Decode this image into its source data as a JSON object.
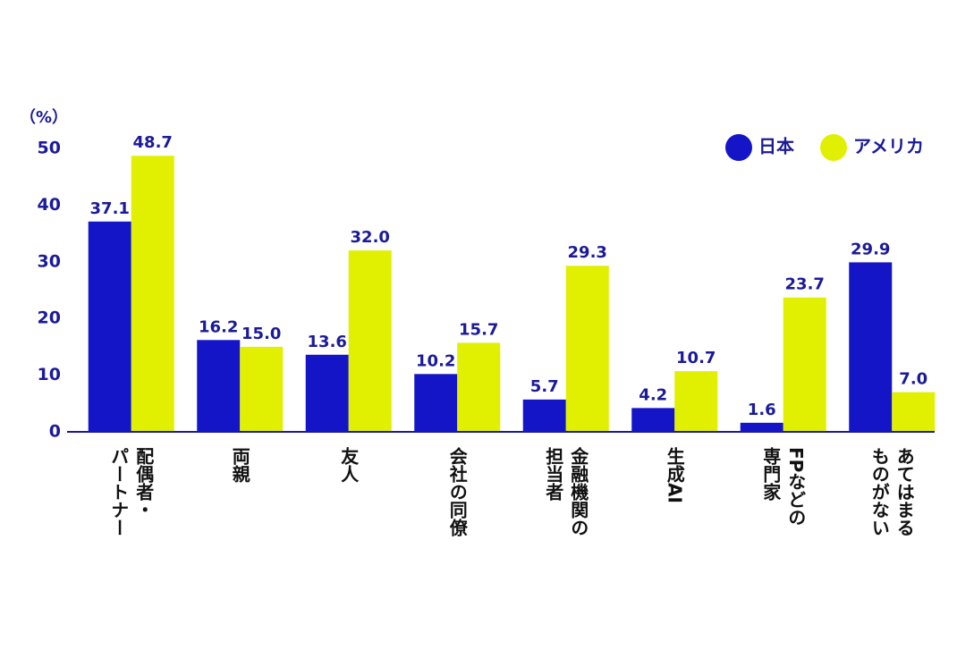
{
  "chart_data": {
    "type": "bar",
    "unit_label": "（%）",
    "categories": [
      [
        "配偶者・",
        "パートナー"
      ],
      [
        "両親"
      ],
      [
        "友人"
      ],
      [
        "会社の同僚"
      ],
      [
        "金融機関の",
        "担当者"
      ],
      [
        "生成AI"
      ],
      [
        "FPなどの",
        "専門家"
      ],
      [
        "あてはまる",
        "ものがない"
      ]
    ],
    "series": [
      {
        "name": "日本",
        "color": "#1515c8",
        "values": [
          37.1,
          16.2,
          13.6,
          10.2,
          5.7,
          4.2,
          1.6,
          29.9
        ],
        "value_labels": [
          "37.1",
          "16.2",
          "13.6",
          "10.2",
          "5.7",
          "4.2",
          "1.6",
          "29.9"
        ]
      },
      {
        "name": "アメリカ",
        "color": "#e1f000",
        "values": [
          48.7,
          15.0,
          32.0,
          15.7,
          29.3,
          10.7,
          23.7,
          7.0
        ],
        "value_labels": [
          "48.7",
          "15.0",
          "32.0",
          "15.7",
          "29.3",
          "10.7",
          "23.7",
          "7.0"
        ]
      }
    ],
    "ylim": [
      0,
      50
    ],
    "yticks": [
      0,
      10,
      20,
      30,
      40,
      50
    ],
    "legend": "top-right"
  }
}
